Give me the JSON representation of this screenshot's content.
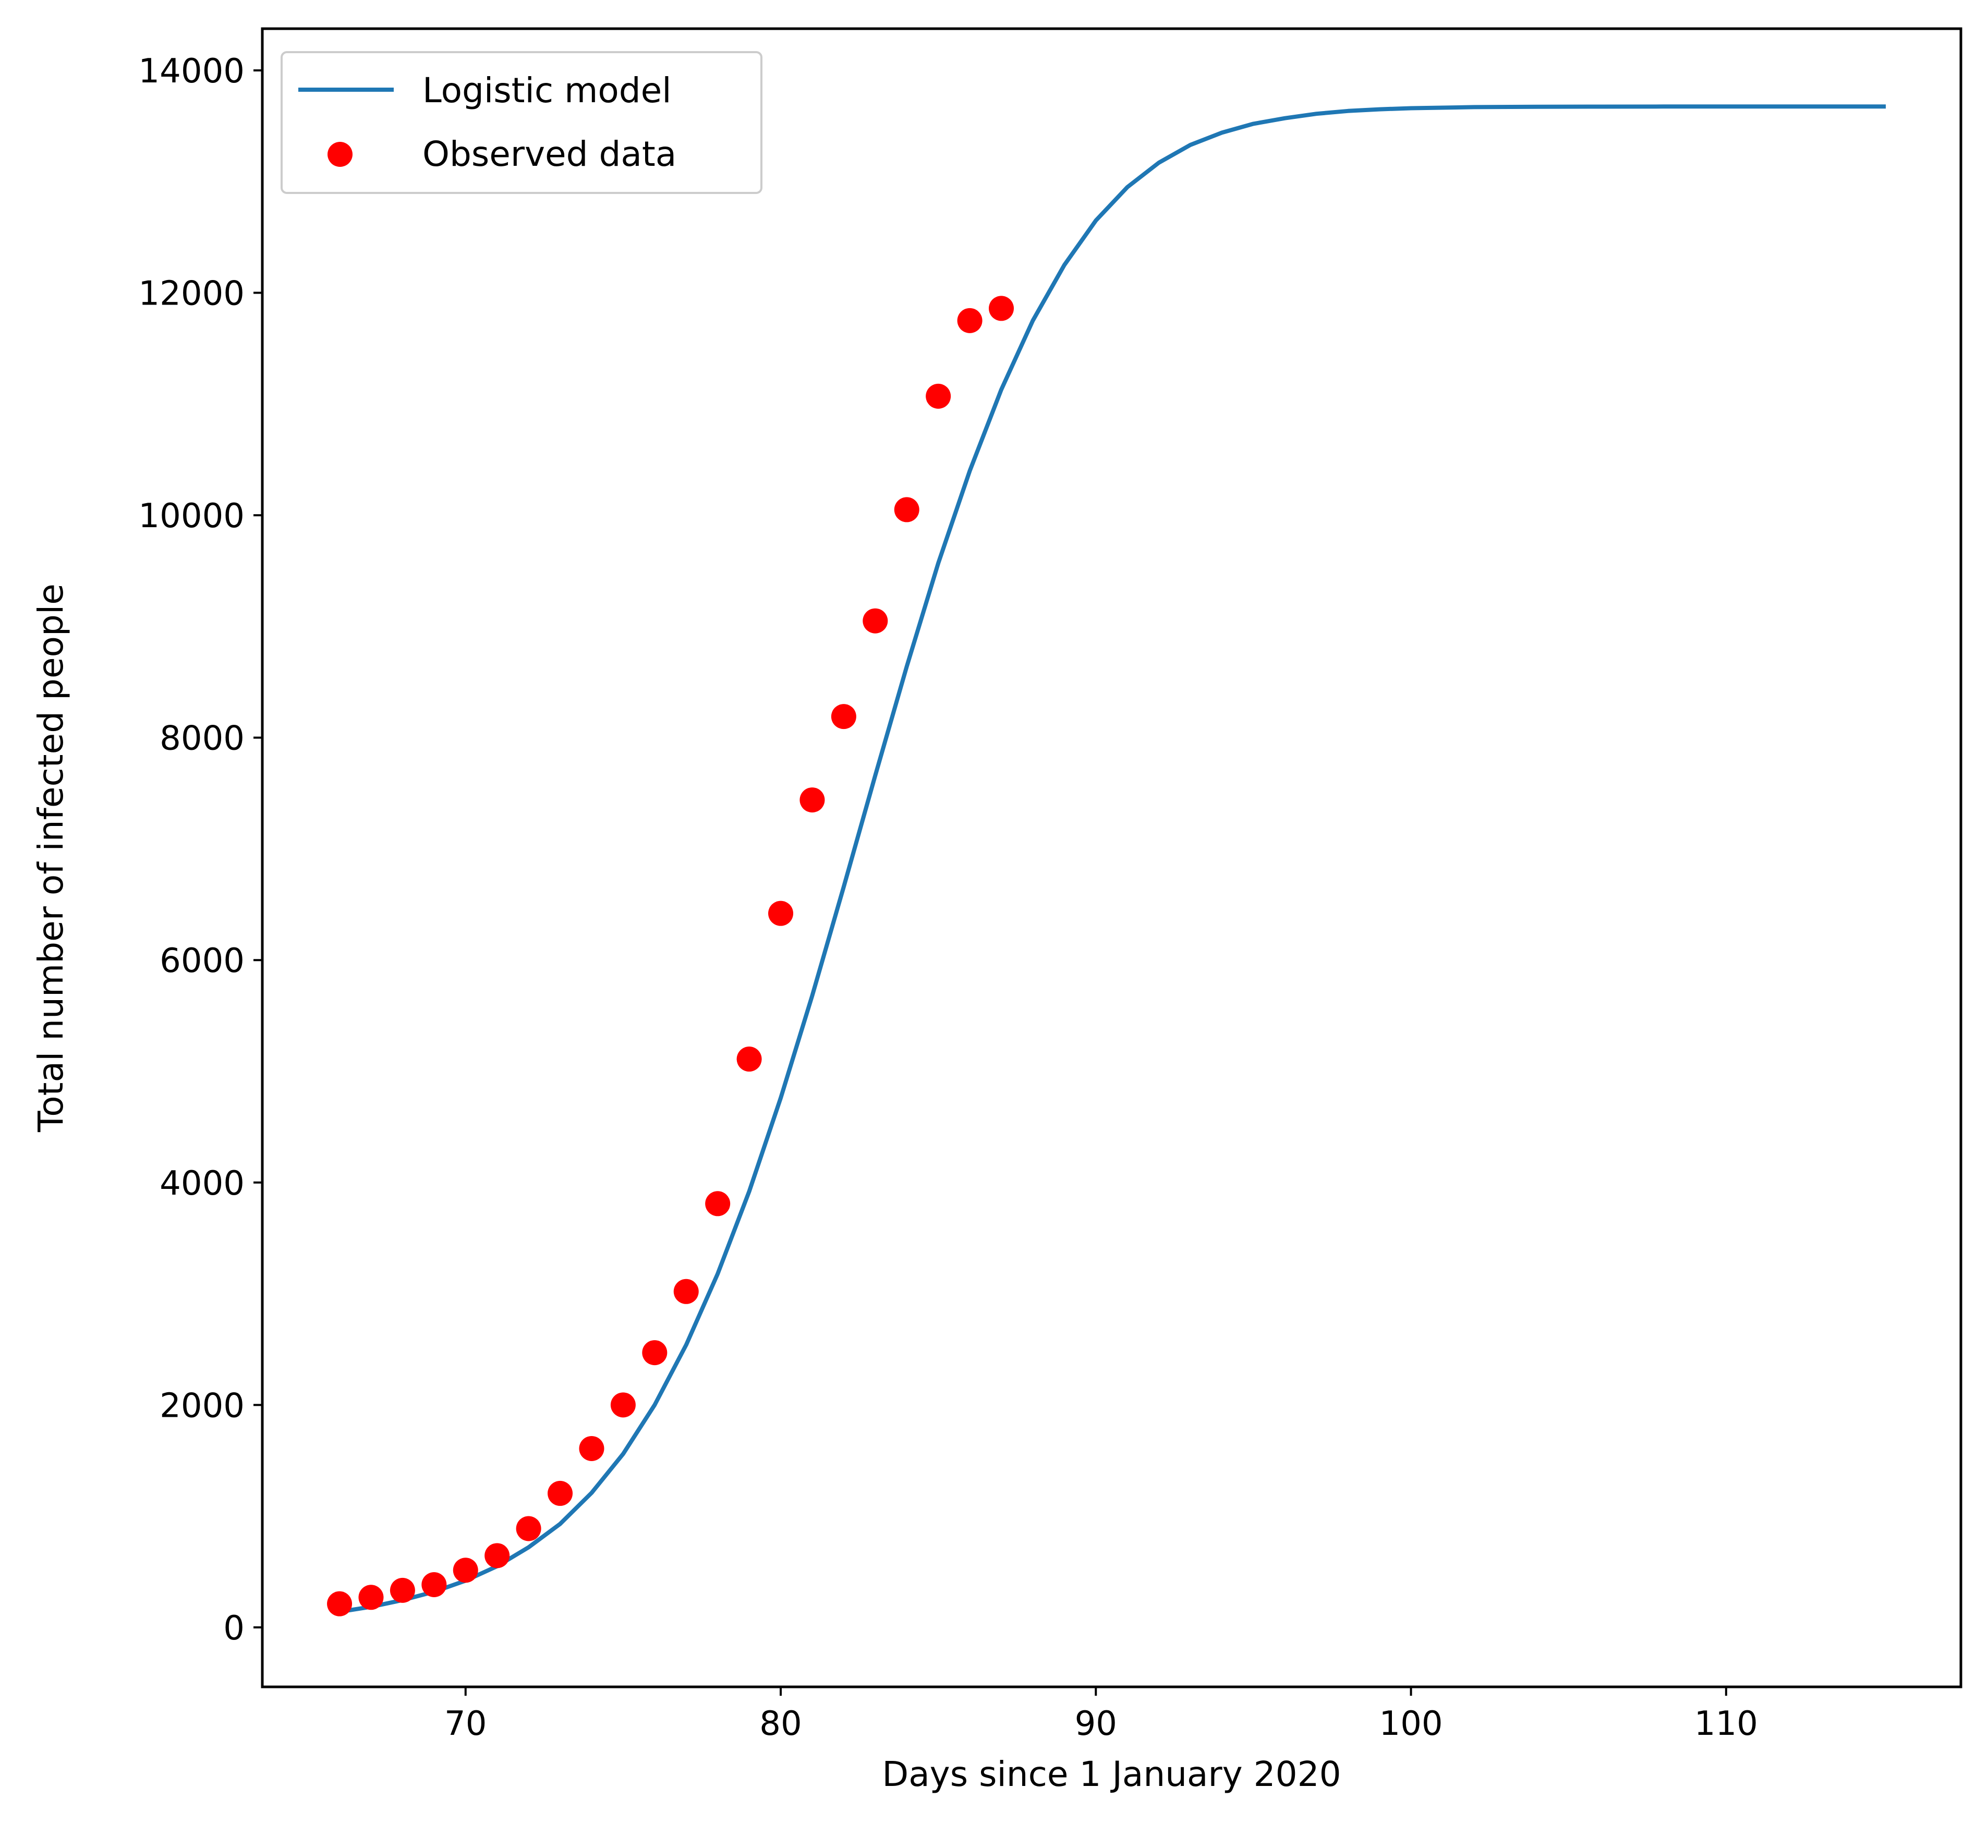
{
  "colors": {
    "background": "#ffffff",
    "axes": "#000000",
    "model_line": "#1f77b4",
    "observed_points": "#ff0000",
    "legend_border": "#cccccc"
  },
  "chart_data": {
    "type": "scatter",
    "title": "",
    "xlabel": "Days since 1 January 2020",
    "ylabel": "Total number of infected people",
    "xlim": [
      63.55,
      117.45
    ],
    "ylim": [
      -535,
      14375
    ],
    "xticks": [
      70,
      80,
      90,
      100,
      110
    ],
    "yticks": [
      0,
      2000,
      4000,
      6000,
      8000,
      10000,
      12000,
      14000
    ],
    "grid": false,
    "legend_position": "top-left",
    "series": [
      {
        "name": "Logistic model",
        "kind": "line",
        "x": [
          66,
          67,
          68,
          69,
          70,
          71,
          72,
          73,
          74,
          75,
          76,
          77,
          78,
          79,
          80,
          81,
          82,
          83,
          84,
          85,
          86,
          87,
          88,
          89,
          90,
          91,
          92,
          93,
          94,
          95,
          96,
          97,
          98,
          99,
          100,
          102,
          104,
          106,
          108,
          110,
          112,
          115
        ],
        "y": [
          140,
          185,
          245,
          320,
          420,
          550,
          720,
          930,
          1210,
          1560,
          2000,
          2540,
          3180,
          3920,
          4760,
          5680,
          6660,
          7660,
          8640,
          9570,
          10400,
          11130,
          11750,
          12250,
          12650,
          12950,
          13170,
          13330,
          13440,
          13520,
          13570,
          13610,
          13635,
          13650,
          13660,
          13670,
          13673,
          13674,
          13675,
          13675,
          13675,
          13675
        ]
      },
      {
        "name": "Observed data",
        "kind": "scatter",
        "x": [
          66,
          67,
          68,
          69,
          70,
          71,
          72,
          73,
          74,
          75,
          76,
          77,
          78,
          79,
          80,
          81,
          82,
          83,
          84,
          85,
          86,
          87
        ],
        "y": [
          212,
          270,
          333,
          384,
          514,
          645,
          888,
          1205,
          1608,
          2000,
          2470,
          3020,
          3810,
          5110,
          6420,
          7440,
          8190,
          9050,
          10050,
          11070,
          11750,
          11860
        ]
      }
    ]
  }
}
